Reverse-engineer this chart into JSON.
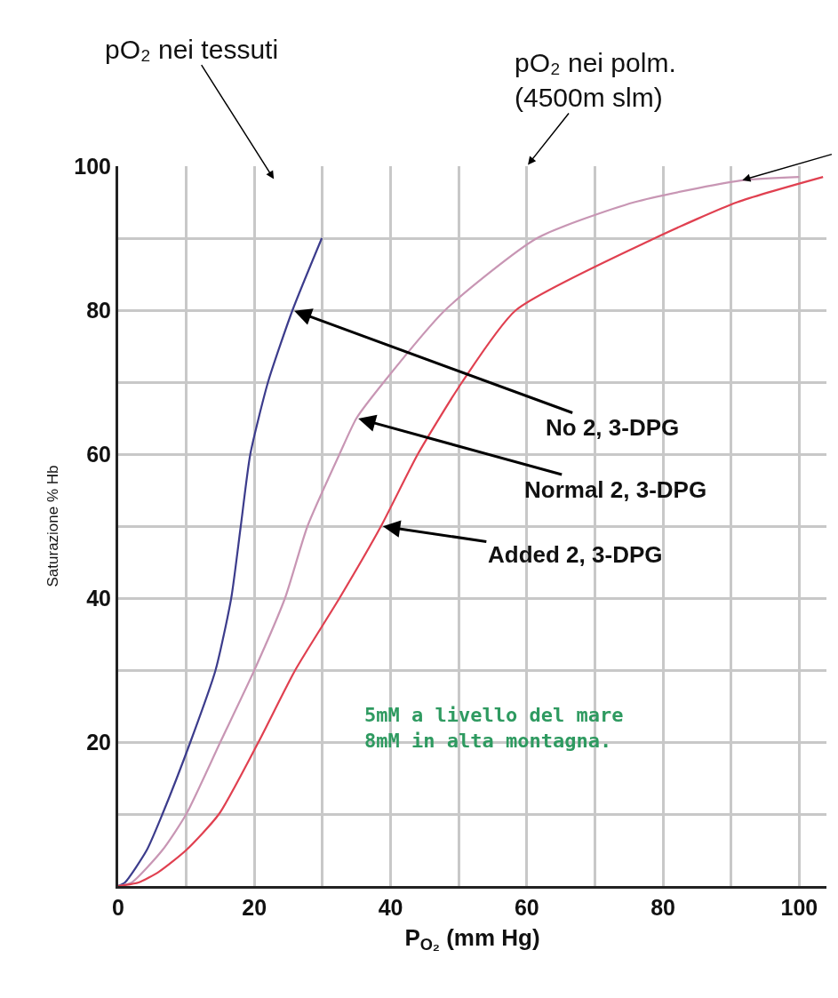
{
  "chart_data": {
    "type": "line",
    "xlabel": "P$_{O₂}$ (mm Hg)",
    "ylabel": "Saturazione % Hb",
    "xlim": [
      0,
      104
    ],
    "ylim": [
      0,
      100
    ],
    "xticks": [
      0,
      {
        "value": 10,
        "label": null
      },
      20,
      {
        "value": 30,
        "label": null
      },
      40,
      {
        "value": 50,
        "label": null
      },
      60,
      {
        "value": 70,
        "label": null
      },
      80,
      {
        "value": 90,
        "label": null
      },
      100
    ],
    "yticks": [
      {
        "value": 10,
        "label": null
      },
      20,
      {
        "value": 30,
        "label": null
      },
      40,
      {
        "value": 50,
        "label": null
      },
      60,
      {
        "value": 70,
        "label": null
      },
      80,
      {
        "value": 90,
        "label": null
      },
      100
    ],
    "grid": true,
    "legend": false,
    "marker": "none",
    "line_style": "solid",
    "series": [
      {
        "color": "#3c3c8c",
        "x": [
          0,
          1,
          4.2,
          6.5,
          10.6,
          14.3,
          16.6,
          18,
          19.4,
          22,
          25.6,
          29.9
        ],
        "values": [
          0,
          0.5,
          5,
          10,
          20,
          30,
          40,
          50,
          60,
          70,
          80,
          90
        ]
      },
      {
        "color": "#c896b4",
        "x": [
          0,
          2,
          6.5,
          10,
          15,
          20,
          24.5,
          27.8,
          32.5,
          35,
          39,
          48,
          61.5,
          75.8,
          91.4,
          100
        ],
        "values": [
          0,
          0.5,
          5,
          10,
          20,
          30,
          40,
          50,
          60,
          65,
          70,
          80,
          90,
          95,
          98,
          98.5
        ]
      },
      {
        "color": "#e04050",
        "x": [
          0,
          3,
          6,
          10,
          14.8,
          20.6,
          26,
          32.5,
          38.6,
          44,
          50.5,
          58.4,
          78.8,
          90.9,
          103.5
        ],
        "values": [
          0,
          0.5,
          2,
          5,
          10,
          20,
          30,
          40,
          50,
          60,
          70,
          80,
          90,
          95,
          98.5
        ]
      }
    ],
    "annotations": [
      "pO₂ nei tessuti",
      "pO₂ nei polm.\n(4500m slm)",
      {
        "text": "No 2, 3-DPG",
        "x": 25.6,
        "y": 80
      },
      {
        "text": "Normal 2, 3-DPG",
        "x": 35,
        "y": 65
      },
      {
        "text": "Added 2, 3-DPG",
        "x": 38.6,
        "y": 50
      },
      "5mM a livello del mare\n8mM in alta montagna."
    ]
  }
}
